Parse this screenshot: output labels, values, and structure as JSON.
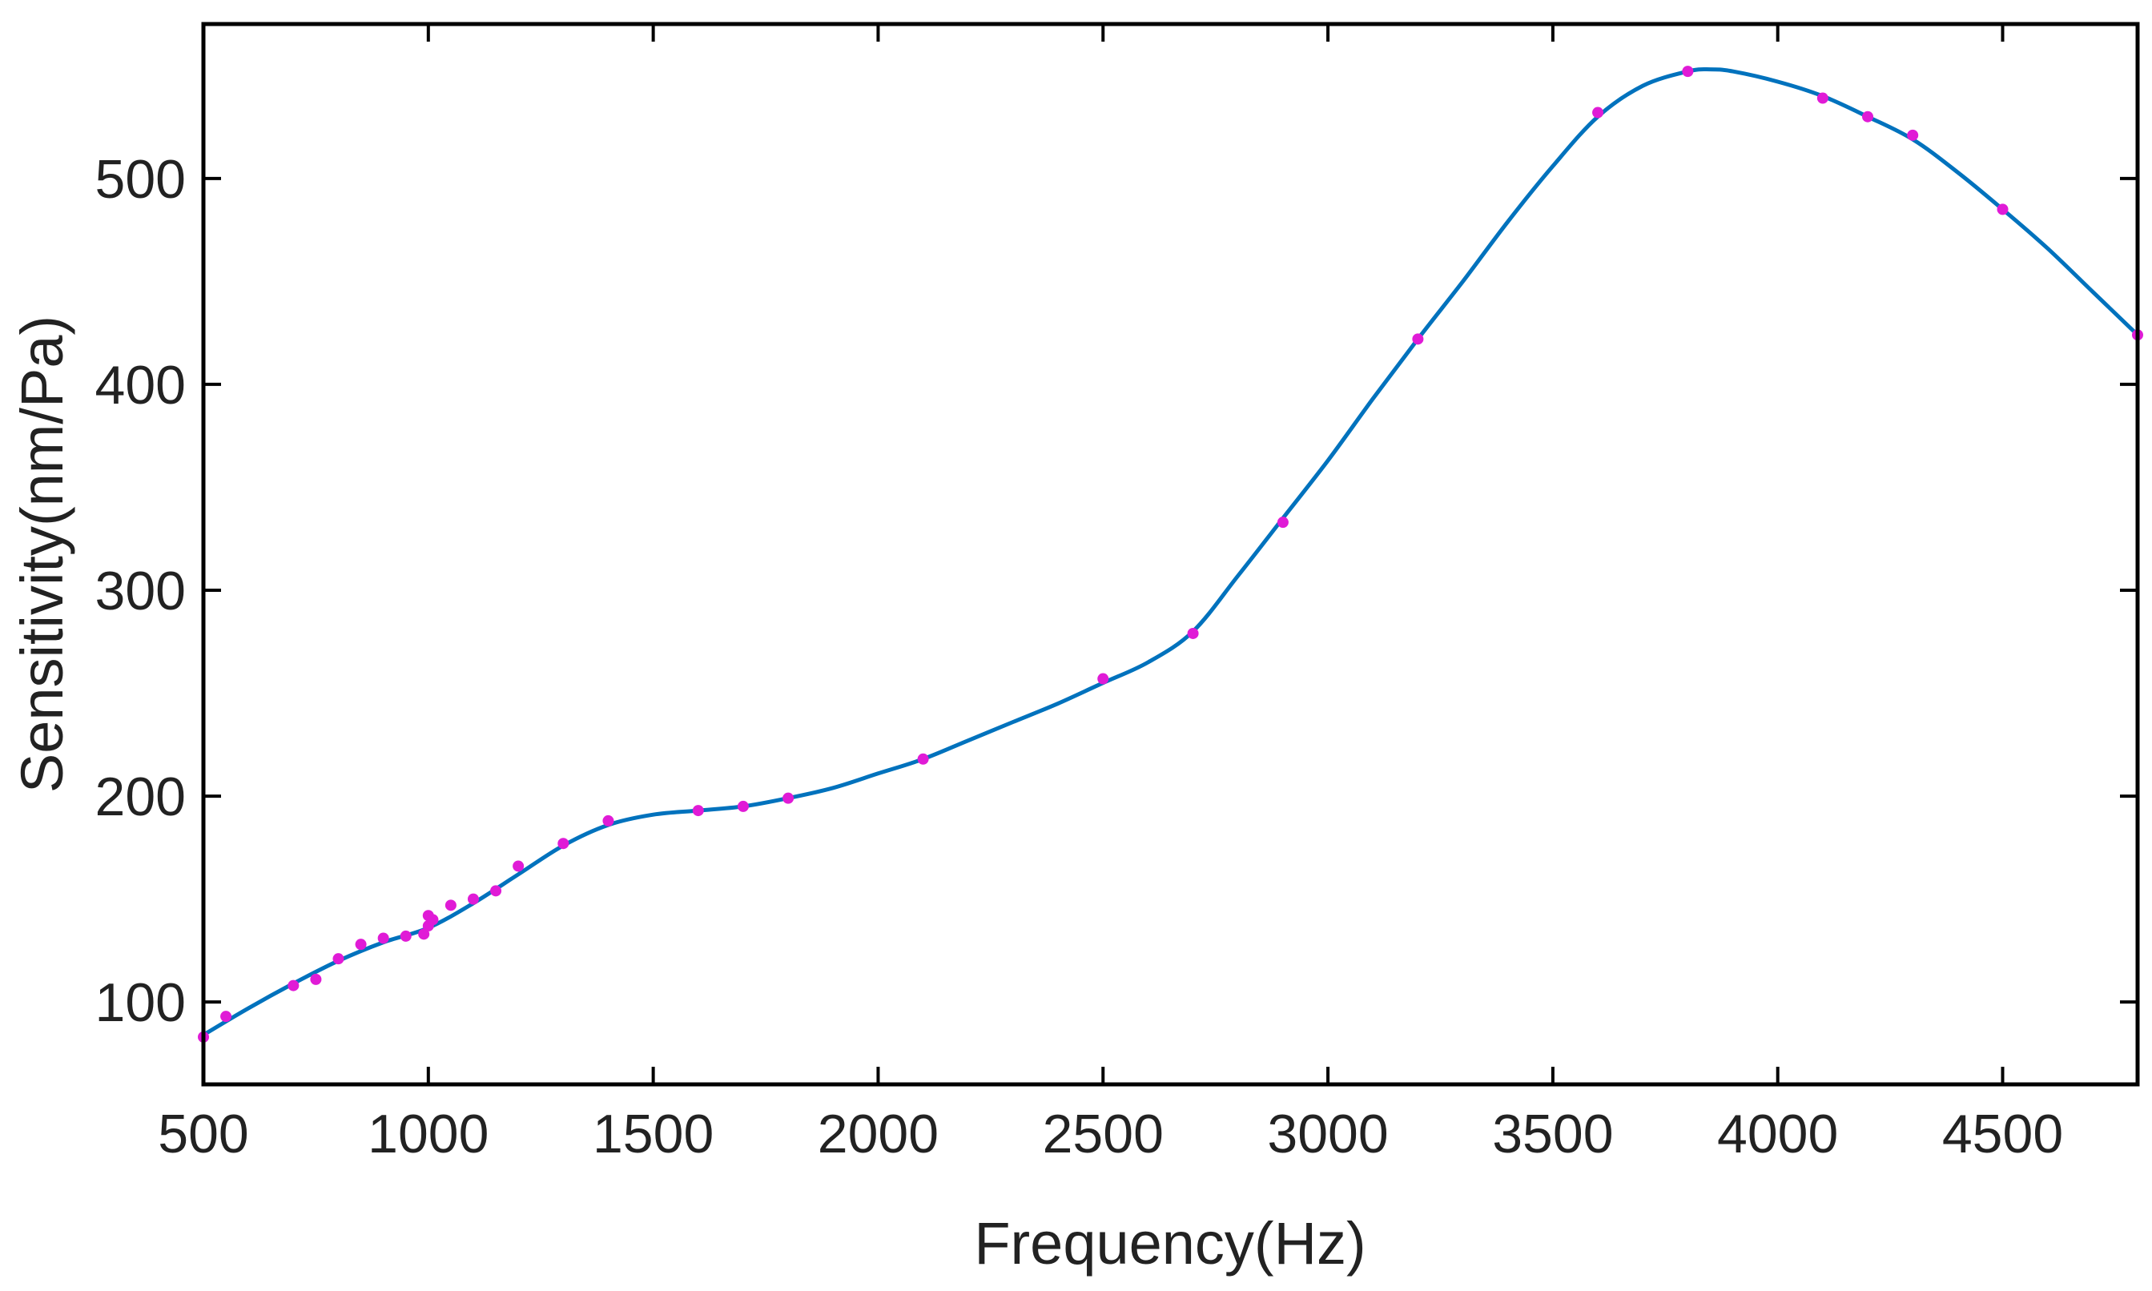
{
  "chart_data": {
    "type": "line",
    "title": "",
    "xlabel": "Frequency(Hz)",
    "ylabel": "Sensitivity(nm/Pa)",
    "xlim": [
      500,
      4800
    ],
    "ylim": [
      60,
      575
    ],
    "x_ticks": [
      500,
      1000,
      1500,
      2000,
      2500,
      3000,
      3500,
      4000,
      4500
    ],
    "y_ticks": [
      100,
      200,
      300,
      400,
      500
    ],
    "grid": false,
    "legend": "none",
    "colors": {
      "fit_line": "#0072BD",
      "markers": "#E01BD6",
      "axes": "#000000"
    },
    "series": [
      {
        "kind": "scatter",
        "x": [
          500,
          550,
          700,
          750,
          800,
          850,
          900,
          950,
          990,
          1000,
          1000,
          1010,
          1050,
          1100,
          1150,
          1200,
          1300,
          1400,
          1600,
          1700,
          1800,
          2100,
          2500,
          2700,
          2900,
          3200,
          3600,
          3800,
          4100,
          4200,
          4300,
          4500,
          4800
        ],
        "y": [
          83,
          93,
          108,
          111,
          121,
          128,
          131,
          132,
          133,
          137,
          142,
          140,
          147,
          150,
          154,
          166,
          177,
          188,
          193,
          195,
          199,
          218,
          257,
          279,
          333,
          422,
          532,
          552,
          539,
          530,
          521,
          485,
          424
        ]
      },
      {
        "kind": "line",
        "x": [
          500,
          600,
          700,
          800,
          900,
          1000,
          1100,
          1200,
          1300,
          1400,
          1500,
          1600,
          1700,
          1800,
          1900,
          2000,
          2100,
          2200,
          2300,
          2400,
          2500,
          2600,
          2700,
          2800,
          2900,
          3000,
          3100,
          3200,
          3300,
          3400,
          3500,
          3600,
          3700,
          3800,
          3850,
          3900,
          4000,
          4100,
          4200,
          4300,
          4400,
          4500,
          4600,
          4700,
          4800
        ],
        "y": [
          84,
          97,
          109,
          120,
          129,
          136,
          148,
          162,
          176,
          186,
          191,
          193,
          195,
          199,
          204,
          211,
          218,
          227,
          236,
          245,
          255,
          265,
          280,
          307,
          335,
          363,
          393,
          422,
          450,
          479,
          506,
          530,
          545,
          552,
          553,
          552,
          547,
          540,
          530,
          519,
          503,
          485,
          466,
          445,
          424
        ]
      }
    ]
  }
}
